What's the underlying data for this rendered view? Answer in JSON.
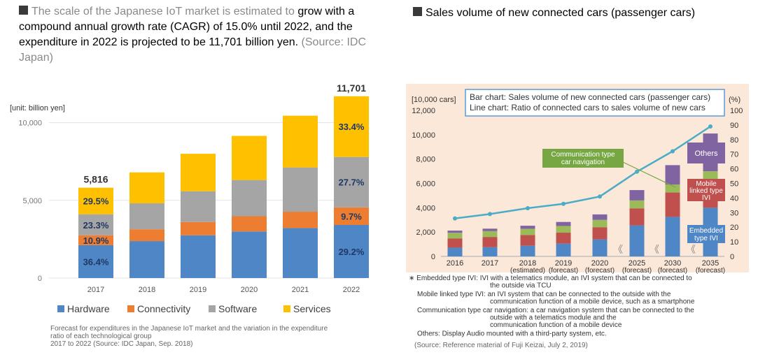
{
  "left_header": {
    "lead": "The scale of the Japanese IoT market is estimated to",
    "body": "grow with a compound annual growth rate (CAGR) of 15.0% until 2022, and the expenditure in 2022 is projected to be 11,701 billion yen.",
    "source": "(Source: IDC Japan)"
  },
  "right_header": {
    "title": "Sales volume of new connected cars (passenger cars)"
  },
  "chart_data": [
    {
      "type": "bar",
      "stacked": true,
      "unit_label": "[unit: billion yen]",
      "categories": [
        "2017",
        "2018",
        "2019",
        "2020",
        "2021",
        "2022"
      ],
      "totals": [
        5816,
        6800,
        8000,
        9150,
        10450,
        11701
      ],
      "total_labels": [
        "5,816",
        "",
        "",
        "",
        "",
        "11,701"
      ],
      "series": [
        {
          "name": "Hardware",
          "color": "#4f86c6",
          "values": [
            2117,
            2380,
            2750,
            3000,
            3220,
            3417
          ],
          "labels": [
            "36.4%",
            "",
            "",
            "",
            "",
            "29.2%"
          ]
        },
        {
          "name": "Connectivity",
          "color": "#ed7d31",
          "values": [
            634,
            760,
            860,
            980,
            1050,
            1135
          ],
          "labels": [
            "10.9%",
            "",
            "",
            "",
            "",
            "9.7%"
          ]
        },
        {
          "name": "Software",
          "color": "#a5a5a5",
          "values": [
            1355,
            1670,
            1980,
            2330,
            2850,
            3241
          ],
          "labels": [
            "23.3%",
            "",
            "",
            "",
            "",
            "27.7%"
          ]
        },
        {
          "name": "Services",
          "color": "#ffc000",
          "values": [
            1710,
            1990,
            2410,
            2840,
            3330,
            3908
          ],
          "labels": [
            "29.5%",
            "",
            "",
            "",
            "",
            "33.4%"
          ]
        }
      ],
      "yticks": [
        0,
        5000,
        10000
      ],
      "ytick_labels": [
        "0",
        "5,000",
        "10,000"
      ],
      "ylim": [
        0,
        12500
      ],
      "legend_position": "bottom",
      "caption": [
        "Forecast for expenditures in the Japanese IoT market and the variation in the expenditure",
        "ratio of each technological group",
        "2017 to 2022 (Source: IDC Japan, Sep. 2018)"
      ]
    },
    {
      "type": "bar",
      "stacked": true,
      "secondary_type": "line",
      "left_unit": "[10,000 cars]",
      "right_unit": "(%)",
      "box_lines": [
        "Bar chart: Sales volume of new connected cars (passenger cars)",
        "Line chart: Ratio of connected cars to sales volume of new cars"
      ],
      "categories": [
        {
          "year": "2016",
          "sub": ""
        },
        {
          "year": "2017",
          "sub": ""
        },
        {
          "year": "2018",
          "sub": "(estimated)"
        },
        {
          "year": "2019",
          "sub": "(forecast)"
        },
        {
          "year": "2020",
          "sub": "(forecast)"
        },
        {
          "year": "2025",
          "sub": "(forecast)"
        },
        {
          "year": "2030",
          "sub": "(forecast)"
        },
        {
          "year": "2035",
          "sub": "(forecast)"
        }
      ],
      "series": [
        {
          "name": "Embedded type IVI",
          "color": "#4f86c6",
          "values": [
            720,
            760,
            880,
            1050,
            1400,
            2550,
            3250,
            4000
          ]
        },
        {
          "name": "Mobile linked type IVI",
          "color": "#c0504d",
          "values": [
            760,
            840,
            870,
            900,
            1000,
            1400,
            2000,
            2300
          ]
        },
        {
          "name": "Communication type car navigation",
          "color": "#9bbb59",
          "values": [
            460,
            480,
            520,
            550,
            600,
            650,
            650,
            700
          ]
        },
        {
          "name": "Others",
          "color": "#8064a2",
          "values": [
            180,
            200,
            250,
            330,
            450,
            850,
            1600,
            3100
          ]
        }
      ],
      "line": {
        "color": "#4bacc6",
        "values": [
          26,
          29,
          33,
          36,
          41,
          58,
          72,
          89
        ]
      },
      "yticks_left": [
        0,
        2000,
        4000,
        6000,
        8000,
        10000,
        12000
      ],
      "ytick_labels_left": [
        "0",
        "2,000",
        "4,000",
        "6,000",
        "8,000",
        "10,000",
        "12,000"
      ],
      "yticks_right": [
        0,
        10,
        20,
        30,
        40,
        50,
        60,
        70,
        80,
        90,
        100
      ],
      "ylim_left": [
        0,
        12000
      ],
      "ylim_right": [
        0,
        100
      ],
      "annotations": [
        {
          "text": [
            "Others"
          ],
          "color": "#8064a2"
        },
        {
          "text": [
            "Mobile",
            "linked type",
            "IVI"
          ],
          "color": "#c0504d"
        },
        {
          "text": [
            "Embedded",
            "type IVI"
          ],
          "color": "#4f86c6"
        },
        {
          "text": [
            "Communication type",
            "car navigation"
          ],
          "color": "#77a742"
        }
      ],
      "footnotes": [
        {
          "lines": [
            "∗ Embedded type IVI: IVI with a telematics module, an IVI system that can be connected to",
            "the outside via TCU"
          ]
        },
        {
          "lines": [
            "Mobile linked type IVI: an IVI system that can be connected to the outside with the",
            "communication function of a mobile device, such as a smartphone"
          ]
        },
        {
          "lines": [
            "Communication type car navigation: a car navigation system that can be connected to the",
            "outside with a telematics module and the",
            "communication function of a mobile device"
          ]
        },
        {
          "lines": [
            "Others: Display Audio mounted with a third-party system, etc."
          ]
        }
      ],
      "source": "(Source: Reference material of Fuji Keizai, July 2, 2019)"
    }
  ]
}
